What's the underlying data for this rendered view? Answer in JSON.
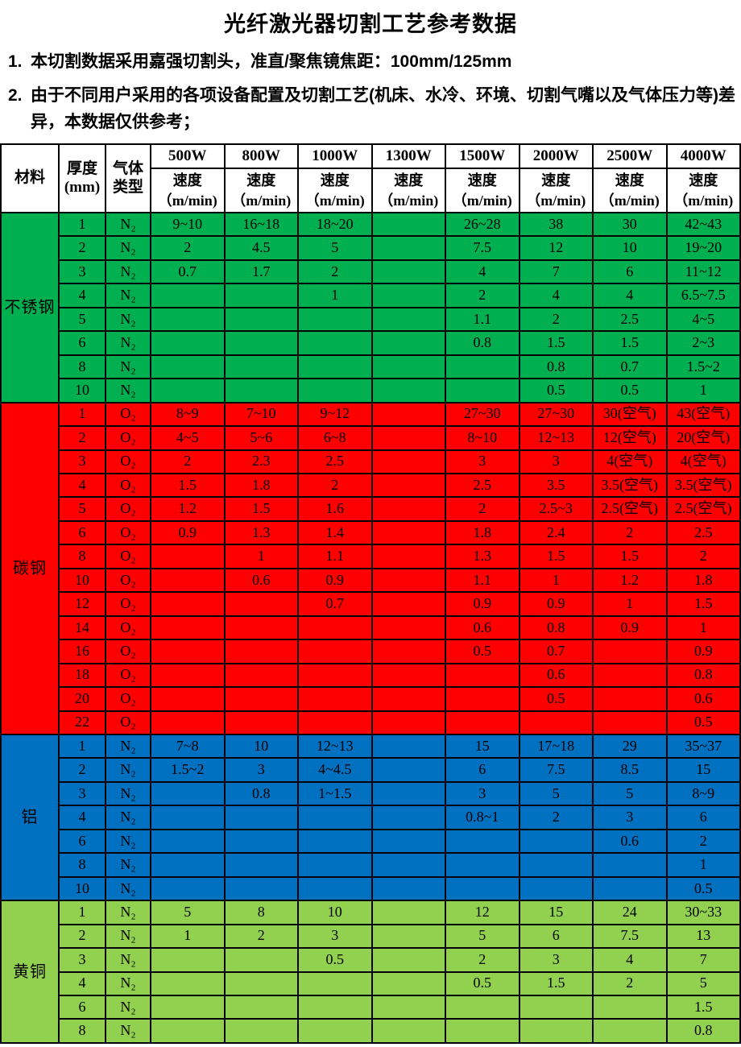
{
  "title": "光纤激光器切割工艺参考数据",
  "notes": [
    {
      "num": "1.",
      "text": "本切割数据采用嘉强切割头，准直/聚焦镜焦距：100mm/125mm"
    },
    {
      "num": "2.",
      "text": "由于不同用户采用的各项设备配置及切割工艺(机床、水冷、环境、切割气嘴以及气体压力等)差异，本数据仅供参考；"
    }
  ],
  "table": {
    "headers": {
      "material": "材料",
      "thickness_line1": "厚度",
      "thickness_line2": "(mm)",
      "gas_line1": "气体",
      "gas_line2": "类型",
      "speed_line1": "速度",
      "speed_line2": "（m/min)"
    },
    "power_columns": [
      "500W",
      "800W",
      "1000W",
      "1300W",
      "1500W",
      "2000W",
      "2500W",
      "4000W"
    ],
    "sections": [
      {
        "material": "不锈钢",
        "color": "#00B050",
        "rows": [
          {
            "thickness": "1",
            "gas": "N₂",
            "speeds": [
              "9~10",
              "16~18",
              "18~20",
              "",
              "26~28",
              "38",
              "30",
              "42~43"
            ]
          },
          {
            "thickness": "2",
            "gas": "N₂",
            "speeds": [
              "2",
              "4.5",
              "5",
              "",
              "7.5",
              "12",
              "10",
              "19~20"
            ]
          },
          {
            "thickness": "3",
            "gas": "N₂",
            "speeds": [
              "0.7",
              "1.7",
              "2",
              "",
              "4",
              "7",
              "6",
              "11~12"
            ]
          },
          {
            "thickness": "4",
            "gas": "N₂",
            "speeds": [
              "",
              "",
              "1",
              "",
              "2",
              "4",
              "4",
              "6.5~7.5"
            ]
          },
          {
            "thickness": "5",
            "gas": "N₂",
            "speeds": [
              "",
              "",
              "",
              "",
              "1.1",
              "2",
              "2.5",
              "4~5"
            ]
          },
          {
            "thickness": "6",
            "gas": "N₂",
            "speeds": [
              "",
              "",
              "",
              "",
              "0.8",
              "1.5",
              "1.5",
              "2~3"
            ]
          },
          {
            "thickness": "8",
            "gas": "N₂",
            "speeds": [
              "",
              "",
              "",
              "",
              "",
              "0.8",
              "0.7",
              "1.5~2"
            ]
          },
          {
            "thickness": "10",
            "gas": "N₂",
            "speeds": [
              "",
              "",
              "",
              "",
              "",
              "0.5",
              "0.5",
              "1"
            ]
          }
        ]
      },
      {
        "material": "碳钢",
        "color": "#FF0000",
        "rows": [
          {
            "thickness": "1",
            "gas": "O₂",
            "speeds": [
              "8~9",
              "7~10",
              "9~12",
              "",
              "27~30",
              "27~30",
              "30(空气)",
              "43(空气)"
            ]
          },
          {
            "thickness": "2",
            "gas": "O₂",
            "speeds": [
              "4~5",
              "5~6",
              "6~8",
              "",
              "8~10",
              "12~13",
              "12(空气)",
              "20(空气)"
            ]
          },
          {
            "thickness": "3",
            "gas": "O₂",
            "speeds": [
              "2",
              "2.3",
              "2.5",
              "",
              "3",
              "3",
              "4(空气)",
              "4(空气)"
            ]
          },
          {
            "thickness": "4",
            "gas": "O₂",
            "speeds": [
              "1.5",
              "1.8",
              "2",
              "",
              "2.5",
              "3.5",
              "3.5(空气)",
              "3.5(空气)"
            ]
          },
          {
            "thickness": "5",
            "gas": "O₂",
            "speeds": [
              "1.2",
              "1.5",
              "1.6",
              "",
              "2",
              "2.5~3",
              "2.5(空气)",
              "2.5(空气)"
            ]
          },
          {
            "thickness": "6",
            "gas": "O₂",
            "speeds": [
              "0.9",
              "1.3",
              "1.4",
              "",
              "1.8",
              "2.4",
              "2",
              "2.5"
            ]
          },
          {
            "thickness": "8",
            "gas": "O₂",
            "speeds": [
              "",
              "1",
              "1.1",
              "",
              "1.3",
              "1.5",
              "1.5",
              "2"
            ]
          },
          {
            "thickness": "10",
            "gas": "O₂",
            "speeds": [
              "",
              "0.6",
              "0.9",
              "",
              "1.1",
              "1",
              "1.2",
              "1.8"
            ]
          },
          {
            "thickness": "12",
            "gas": "O₂",
            "speeds": [
              "",
              "",
              "0.7",
              "",
              "0.9",
              "0.9",
              "1",
              "1.5"
            ]
          },
          {
            "thickness": "14",
            "gas": "O₂",
            "speeds": [
              "",
              "",
              "",
              "",
              "0.6",
              "0.8",
              "0.9",
              "1"
            ]
          },
          {
            "thickness": "16",
            "gas": "O₂",
            "speeds": [
              "",
              "",
              "",
              "",
              "0.5",
              "0.7",
              "",
              "0.9"
            ]
          },
          {
            "thickness": "18",
            "gas": "O₂",
            "speeds": [
              "",
              "",
              "",
              "",
              "",
              "0.6",
              "",
              "0.8"
            ]
          },
          {
            "thickness": "20",
            "gas": "O₂",
            "speeds": [
              "",
              "",
              "",
              "",
              "",
              "0.5",
              "",
              "0.6"
            ]
          },
          {
            "thickness": "22",
            "gas": "O₂",
            "speeds": [
              "",
              "",
              "",
              "",
              "",
              "",
              "",
              "0.5"
            ]
          }
        ]
      },
      {
        "material": "铝",
        "color": "#0070C0",
        "rows": [
          {
            "thickness": "1",
            "gas": "N₂",
            "speeds": [
              "7~8",
              "10",
              "12~13",
              "",
              "15",
              "17~18",
              "29",
              "35~37"
            ]
          },
          {
            "thickness": "2",
            "gas": "N₂",
            "speeds": [
              "1.5~2",
              "3",
              "4~4.5",
              "",
              "6",
              "7.5",
              "8.5",
              "15"
            ]
          },
          {
            "thickness": "3",
            "gas": "N₂",
            "speeds": [
              "",
              "0.8",
              "1~1.5",
              "",
              "3",
              "5",
              "5",
              "8~9"
            ]
          },
          {
            "thickness": "4",
            "gas": "N₂",
            "speeds": [
              "",
              "",
              "",
              "",
              "0.8~1",
              "2",
              "3",
              "6"
            ]
          },
          {
            "thickness": "6",
            "gas": "N₂",
            "speeds": [
              "",
              "",
              "",
              "",
              "",
              "",
              "0.6",
              "2"
            ]
          },
          {
            "thickness": "8",
            "gas": "N₂",
            "speeds": [
              "",
              "",
              "",
              "",
              "",
              "",
              "",
              "1"
            ]
          },
          {
            "thickness": "10",
            "gas": "N₂",
            "speeds": [
              "",
              "",
              "",
              "",
              "",
              "",
              "",
              "0.5"
            ]
          }
        ]
      },
      {
        "material": "黄铜",
        "color": "#92D050",
        "rows": [
          {
            "thickness": "1",
            "gas": "N₂",
            "speeds": [
              "5",
              "8",
              "10",
              "",
              "12",
              "15",
              "24",
              "30~33"
            ]
          },
          {
            "thickness": "2",
            "gas": "N₂",
            "speeds": [
              "1",
              "2",
              "3",
              "",
              "5",
              "6",
              "7.5",
              "13"
            ]
          },
          {
            "thickness": "3",
            "gas": "N₂",
            "speeds": [
              "",
              "",
              "0.5",
              "",
              "2",
              "3",
              "4",
              "7"
            ]
          },
          {
            "thickness": "4",
            "gas": "N₂",
            "speeds": [
              "",
              "",
              "",
              "",
              "0.5",
              "1.5",
              "2",
              "5"
            ]
          },
          {
            "thickness": "6",
            "gas": "N₂",
            "speeds": [
              "",
              "",
              "",
              "",
              "",
              "",
              "",
              "1.5"
            ]
          },
          {
            "thickness": "8",
            "gas": "N₂",
            "speeds": [
              "",
              "",
              "",
              "",
              "",
              "",
              "",
              "0.8"
            ]
          }
        ]
      }
    ]
  }
}
